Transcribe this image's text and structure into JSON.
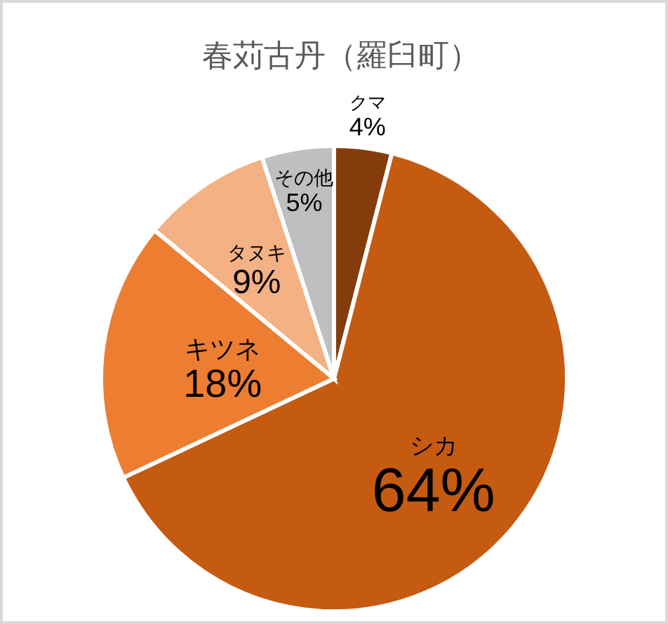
{
  "chart_data": {
    "type": "pie",
    "title": "春苅古丹（羅臼町）",
    "categories": [
      "クマ",
      "シカ",
      "キツネ",
      "タヌキ",
      "その他"
    ],
    "values": [
      4,
      64,
      18,
      9,
      5
    ],
    "colors": [
      "#843c0c",
      "#c55a11",
      "#ed7d31",
      "#f4b183",
      "#bfbfbf"
    ],
    "value_labels": [
      "4%",
      "64%",
      "18%",
      "9%",
      "5%"
    ]
  }
}
